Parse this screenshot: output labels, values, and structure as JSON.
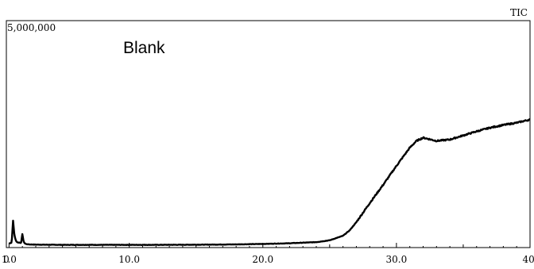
{
  "chart_data": {
    "type": "line",
    "title": "",
    "annotation": "Blank",
    "trace_label": "TIC",
    "ymax_label": "5,000,000",
    "xlabel": "",
    "ylabel": "",
    "xlim": [
      0.8,
      40.0
    ],
    "ylim": [
      0,
      5000000
    ],
    "x_ticks": [
      {
        "value": 0.8,
        "label": "0"
      },
      {
        "value": 1.0,
        "label": "1.0"
      },
      {
        "value": 10.0,
        "label": "10.0"
      },
      {
        "value": 20.0,
        "label": "20.0"
      },
      {
        "value": 30.0,
        "label": "30.0"
      },
      {
        "value": 40.0,
        "label": "40."
      }
    ],
    "grid": false,
    "series": [
      {
        "x": [
          1.0,
          1.2,
          1.3,
          1.4,
          1.5,
          1.6,
          1.7,
          1.8,
          1.9,
          2.0,
          2.1,
          2.2,
          2.3,
          2.5,
          3,
          5,
          8,
          10,
          12,
          14,
          16,
          18,
          20,
          22,
          24,
          25,
          26,
          26.5,
          27,
          27.5,
          28,
          29,
          30,
          31,
          31.5,
          32,
          32.3,
          33,
          34,
          35,
          36,
          37,
          38,
          39,
          40
        ],
        "y": [
          90000,
          110000,
          600000,
          280000,
          160000,
          120000,
          110000,
          110000,
          100000,
          300000,
          120000,
          90000,
          75000,
          70000,
          65000,
          60000,
          60000,
          60000,
          60000,
          62000,
          65000,
          70000,
          80000,
          95000,
          120000,
          160000,
          260000,
          380000,
          560000,
          770000,
          980000,
          1380000,
          1800000,
          2200000,
          2350000,
          2420000,
          2400000,
          2350000,
          2380000,
          2470000,
          2560000,
          2640000,
          2700000,
          2750000,
          2820000
        ]
      }
    ]
  }
}
